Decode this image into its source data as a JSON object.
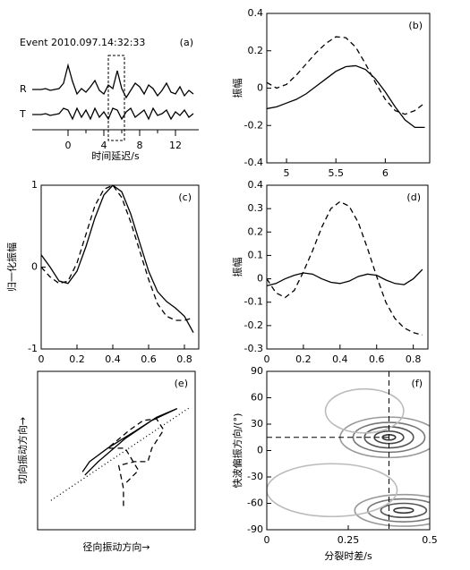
{
  "chart_data": [
    {
      "type": "line",
      "title": "Event 2010.097.14:32:33",
      "label": "(a)",
      "xlabel": "时间延迟/s",
      "xlim": [
        -4,
        14.6
      ],
      "ylim": [
        0,
        4.5
      ],
      "xticks": [
        0,
        4,
        8,
        12
      ],
      "frame": false,
      "window": [
        4.5,
        6.3
      ],
      "x": [
        -4,
        -3.5,
        -3,
        -2.5,
        -2,
        -1.5,
        -1,
        -0.5,
        0,
        0.5,
        1,
        1.5,
        2,
        2.5,
        3,
        3.5,
        4,
        4.5,
        5,
        5.5,
        6,
        6.5,
        7,
        7.5,
        8,
        8.5,
        9,
        9.5,
        10,
        10.5,
        11,
        11.5,
        12,
        12.5,
        13,
        13.5,
        14
      ],
      "series": [
        {
          "name": "R",
          "color": "#000000",
          "dash": "solid",
          "values": [
            2.25,
            2.25,
            2.25,
            2.3,
            2.2,
            2.25,
            2.3,
            2.6,
            3.6,
            2.7,
            2.0,
            2.3,
            2.1,
            2.4,
            2.75,
            2.2,
            2.0,
            2.5,
            2.3,
            3.3,
            2.3,
            1.8,
            2.2,
            2.6,
            2.4,
            2.0,
            2.5,
            2.3,
            1.9,
            2.2,
            2.6,
            2.1,
            2.0,
            2.4,
            1.9,
            2.2,
            2.0
          ]
        },
        {
          "name": "T",
          "color": "#000000",
          "dash": "solid",
          "values": [
            0.85,
            0.85,
            0.85,
            0.9,
            0.8,
            0.85,
            0.9,
            1.2,
            1.1,
            0.6,
            1.2,
            0.7,
            1.1,
            0.6,
            1.2,
            0.7,
            1.0,
            0.6,
            1.2,
            1.1,
            0.6,
            1.0,
            1.2,
            0.7,
            0.9,
            1.1,
            0.6,
            1.2,
            0.8,
            0.9,
            1.1,
            0.6,
            1.0,
            0.8,
            1.1,
            0.7,
            0.9
          ]
        }
      ]
    },
    {
      "type": "line",
      "label": "(b)",
      "ylabel": "振幅",
      "xlim": [
        4.8,
        6.45
      ],
      "ylim": [
        -0.4,
        0.4
      ],
      "xticks": [
        5,
        5.5,
        6
      ],
      "yticks": [
        -0.4,
        -0.2,
        0,
        0.2,
        0.4
      ],
      "frame": true,
      "x": [
        4.8,
        4.9,
        5.0,
        5.1,
        5.2,
        5.3,
        5.4,
        5.5,
        5.6,
        5.7,
        5.8,
        5.9,
        6.0,
        6.1,
        6.2,
        6.3,
        6.4
      ],
      "series": [
        {
          "color": "#000000",
          "dash": "solid",
          "values": [
            -0.11,
            -0.1,
            -0.08,
            -0.06,
            -0.03,
            0.01,
            0.05,
            0.09,
            0.115,
            0.12,
            0.1,
            0.05,
            -0.02,
            -0.1,
            -0.17,
            -0.21,
            -0.21
          ]
        },
        {
          "color": "#000000",
          "dash": "dashed",
          "values": [
            0.03,
            0.0,
            0.02,
            0.07,
            0.13,
            0.19,
            0.24,
            0.275,
            0.27,
            0.22,
            0.13,
            0.03,
            -0.06,
            -0.12,
            -0.14,
            -0.12,
            -0.08
          ]
        }
      ]
    },
    {
      "type": "line",
      "label": "(c)",
      "ylabel": "归一化振幅",
      "xlim": [
        0,
        0.88
      ],
      "ylim": [
        -1,
        1
      ],
      "xticks": [
        0,
        0.2,
        0.4,
        0.6,
        0.8
      ],
      "yticks": [
        -1,
        0,
        1
      ],
      "frame": true,
      "x": [
        0,
        0.05,
        0.1,
        0.15,
        0.2,
        0.25,
        0.3,
        0.35,
        0.4,
        0.45,
        0.5,
        0.55,
        0.6,
        0.65,
        0.7,
        0.75,
        0.8,
        0.85
      ],
      "series": [
        {
          "color": "#000000",
          "dash": "solid",
          "values": [
            0.15,
            0.0,
            -0.17,
            -0.2,
            -0.05,
            0.25,
            0.6,
            0.88,
            1.0,
            0.92,
            0.65,
            0.3,
            -0.05,
            -0.3,
            -0.42,
            -0.5,
            -0.6,
            -0.8
          ]
        },
        {
          "color": "#000000",
          "dash": "dashed",
          "values": [
            0.0,
            -0.12,
            -0.2,
            -0.17,
            0.05,
            0.4,
            0.75,
            0.95,
            1.0,
            0.85,
            0.55,
            0.2,
            -0.15,
            -0.45,
            -0.6,
            -0.65,
            -0.65,
            -0.62
          ]
        }
      ]
    },
    {
      "type": "line",
      "label": "(d)",
      "ylabel": "振幅",
      "xlim": [
        0,
        0.88
      ],
      "ylim": [
        -0.3,
        0.4
      ],
      "xticks": [
        0,
        0.2,
        0.4,
        0.6,
        0.8
      ],
      "yticks": [
        -0.3,
        -0.2,
        -0.1,
        0,
        0.1,
        0.2,
        0.3,
        0.4
      ],
      "frame": true,
      "x": [
        0,
        0.05,
        0.1,
        0.15,
        0.2,
        0.25,
        0.3,
        0.35,
        0.4,
        0.45,
        0.5,
        0.55,
        0.6,
        0.65,
        0.7,
        0.75,
        0.8,
        0.85
      ],
      "series": [
        {
          "color": "#000000",
          "dash": "solid",
          "values": [
            -0.03,
            -0.02,
            0.0,
            0.015,
            0.025,
            0.02,
            0.0,
            -0.015,
            -0.02,
            -0.01,
            0.01,
            0.02,
            0.015,
            -0.005,
            -0.02,
            -0.025,
            0.0,
            0.04
          ]
        },
        {
          "color": "#000000",
          "dash": "dashed",
          "values": [
            0.0,
            -0.06,
            -0.08,
            -0.05,
            0.03,
            0.12,
            0.22,
            0.3,
            0.33,
            0.31,
            0.24,
            0.13,
            0.01,
            -0.1,
            -0.17,
            -0.21,
            -0.23,
            -0.24
          ]
        }
      ]
    },
    {
      "type": "line",
      "label": "(e)",
      "xlabel": "径向振动方向→",
      "ylabel": "切向振动方向→",
      "xlim": [
        -1,
        1
      ],
      "ylim": [
        -1,
        1
      ],
      "frame": true,
      "series": [
        {
          "color": "#000000",
          "dash": "solid",
          "x": [
            -0.43,
            -0.34,
            -0.11,
            0.23,
            0.51,
            0.77,
            0.45,
            0.11,
            -0.23,
            -0.4
          ],
          "values": [
            -0.27,
            -0.14,
            0.03,
            0.24,
            0.42,
            0.53,
            0.38,
            0.15,
            -0.14,
            -0.31
          ]
        },
        {
          "color": "#000000",
          "dash": "dotted",
          "x": [
            -0.83,
            0.94
          ],
          "values": [
            -0.63,
            0.55
          ]
        },
        {
          "color": "#000000",
          "dash": "dashed",
          "x": [
            0.09,
            0.09,
            0.03,
            0.23,
            0.4,
            0.45,
            0.6,
            0.51,
            0.34,
            0.17,
            -0.11,
            0.11,
            0.28,
            0.11
          ],
          "values": [
            -0.7,
            -0.48,
            -0.19,
            -0.14,
            -0.14,
            0.03,
            0.26,
            0.4,
            0.38,
            0.26,
            0.03,
            0.03,
            -0.25,
            -0.42
          ]
        }
      ]
    },
    {
      "type": "contour",
      "label": "(f)",
      "xlabel": "分裂时差/s",
      "ylabel": "快波偏振方向/(°)",
      "xlim": [
        0,
        0.5
      ],
      "ylim": [
        -90,
        90
      ],
      "xticks": [
        0,
        0.25,
        0.5
      ],
      "yticks": [
        -90,
        -60,
        -30,
        0,
        30,
        60,
        90
      ],
      "frame": true,
      "crosshair": [
        0.375,
        15
      ],
      "contours": [
        {
          "center": [
            0.375,
            15
          ],
          "radius": [
            0.02,
            3
          ],
          "color": "#333333"
        },
        {
          "center": [
            0.375,
            15
          ],
          "radius": [
            0.045,
            7
          ],
          "color": "#444444"
        },
        {
          "center": [
            0.375,
            15
          ],
          "radius": [
            0.075,
            12
          ],
          "color": "#555555"
        },
        {
          "center": [
            0.375,
            15
          ],
          "radius": [
            0.11,
            17
          ],
          "color": "#777777"
        },
        {
          "center": [
            0.375,
            15
          ],
          "radius": [
            0.15,
            23
          ],
          "color": "#999999"
        },
        {
          "center": [
            0.42,
            -68
          ],
          "radius": [
            0.03,
            3
          ],
          "color": "#333333"
        },
        {
          "center": [
            0.42,
            -68
          ],
          "radius": [
            0.07,
            8
          ],
          "color": "#555555"
        },
        {
          "center": [
            0.42,
            -68
          ],
          "radius": [
            0.11,
            13
          ],
          "color": "#777777"
        },
        {
          "center": [
            0.42,
            -68
          ],
          "radius": [
            0.15,
            18
          ],
          "color": "#999999"
        },
        {
          "center": [
            0.3,
            45
          ],
          "radius": [
            0.12,
            25
          ],
          "color": "#bbbbbb"
        },
        {
          "center": [
            0.2,
            -45
          ],
          "radius": [
            0.2,
            30
          ],
          "color": "#bbbbbb"
        }
      ]
    }
  ]
}
